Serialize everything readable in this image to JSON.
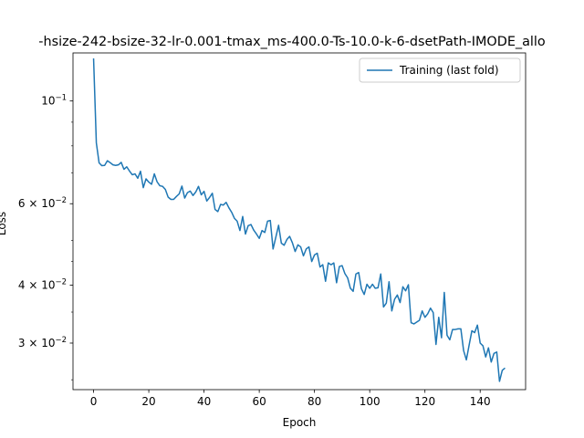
{
  "chart_data": {
    "type": "line",
    "title": "-hsize-242-bsize-32-lr-0.001-tmax_ms-400.0-Ts-10.0-k-6-dsetPath-IMODE_allo",
    "xlabel": "Epoch",
    "ylabel": "Loss",
    "xlim": [
      -7.45,
      156.45
    ],
    "ylim": [
      0.0238,
      0.127
    ],
    "y_scale": "log",
    "x_ticks": [
      0,
      20,
      40,
      60,
      80,
      100,
      120,
      140
    ],
    "y_ticks": [
      {
        "value": 0.1,
        "label": "10",
        "sup": "−1"
      },
      {
        "value": 0.06,
        "label": "6 × 10",
        "sup": "−2"
      },
      {
        "value": 0.04,
        "label": "4 × 10",
        "sup": "−2"
      },
      {
        "value": 0.03,
        "label": "3 × 10",
        "sup": "−2"
      }
    ],
    "legend": {
      "position": "top-right"
    },
    "grid": false,
    "series": [
      {
        "name": "Training (last fold)",
        "color": "#1f77b4",
        "x": [
          0,
          1,
          2,
          3,
          4,
          5,
          6,
          7,
          8,
          9,
          10,
          11,
          12,
          13,
          14,
          15,
          16,
          17,
          18,
          19,
          20,
          21,
          22,
          23,
          24,
          25,
          26,
          27,
          28,
          29,
          30,
          31,
          32,
          33,
          34,
          35,
          36,
          37,
          38,
          39,
          40,
          41,
          42,
          43,
          44,
          45,
          46,
          47,
          48,
          49,
          50,
          51,
          52,
          53,
          54,
          55,
          56,
          57,
          58,
          59,
          60,
          61,
          62,
          63,
          64,
          65,
          66,
          67,
          68,
          69,
          70,
          71,
          72,
          73,
          74,
          75,
          76,
          77,
          78,
          79,
          80,
          81,
          82,
          83,
          84,
          85,
          86,
          87,
          88,
          89,
          90,
          91,
          92,
          93,
          94,
          95,
          96,
          97,
          98,
          99,
          100,
          101,
          102,
          103,
          104,
          105,
          106,
          107,
          108,
          109,
          110,
          111,
          112,
          113,
          114,
          115,
          116,
          117,
          118,
          119,
          120,
          121,
          122,
          123,
          124,
          125,
          126,
          127,
          128,
          129,
          130,
          131,
          132,
          133,
          134,
          135,
          136,
          137,
          138,
          139,
          140,
          141,
          142,
          143,
          144,
          145,
          146,
          147,
          148,
          149
        ],
        "y": [
          0.1236,
          0.0812,
          0.0735,
          0.0725,
          0.0726,
          0.0743,
          0.0736,
          0.0728,
          0.0726,
          0.0728,
          0.0737,
          0.0712,
          0.0721,
          0.0706,
          0.0693,
          0.0696,
          0.0681,
          0.0705,
          0.065,
          0.0679,
          0.0668,
          0.0661,
          0.0696,
          0.0669,
          0.0656,
          0.0654,
          0.0644,
          0.062,
          0.0613,
          0.0613,
          0.0622,
          0.063,
          0.0655,
          0.0617,
          0.0634,
          0.0639,
          0.0625,
          0.0636,
          0.0654,
          0.0627,
          0.0638,
          0.0608,
          0.0619,
          0.0632,
          0.0583,
          0.0577,
          0.0598,
          0.0596,
          0.0604,
          0.0588,
          0.0575,
          0.0558,
          0.055,
          0.0525,
          0.0563,
          0.0516,
          0.0538,
          0.0541,
          0.0526,
          0.0516,
          0.0505,
          0.0525,
          0.052,
          0.055,
          0.0552,
          0.0479,
          0.0508,
          0.0539,
          0.0493,
          0.0488,
          0.0502,
          0.051,
          0.0494,
          0.0473,
          0.0489,
          0.0484,
          0.0463,
          0.0479,
          0.0484,
          0.045,
          0.0465,
          0.0469,
          0.0438,
          0.0443,
          0.0408,
          0.0447,
          0.0443,
          0.0447,
          0.0405,
          0.0439,
          0.0441,
          0.0424,
          0.0415,
          0.0394,
          0.0388,
          0.0423,
          0.0426,
          0.0393,
          0.0382,
          0.0402,
          0.0394,
          0.0402,
          0.0394,
          0.0395,
          0.0423,
          0.0359,
          0.0366,
          0.0407,
          0.0352,
          0.0373,
          0.0381,
          0.0367,
          0.0397,
          0.0389,
          0.0401,
          0.0332,
          0.033,
          0.0333,
          0.0336,
          0.0352,
          0.0341,
          0.0347,
          0.0357,
          0.0349,
          0.0298,
          0.0341,
          0.0308,
          0.0386,
          0.0312,
          0.0305,
          0.0321,
          0.0321,
          0.0322,
          0.0322,
          0.0289,
          0.0276,
          0.0297,
          0.0319,
          0.0316,
          0.0328,
          0.03,
          0.0296,
          0.028,
          0.0293,
          0.0273,
          0.0285,
          0.0287,
          0.0248,
          0.0262,
          0.0265
        ]
      }
    ]
  }
}
